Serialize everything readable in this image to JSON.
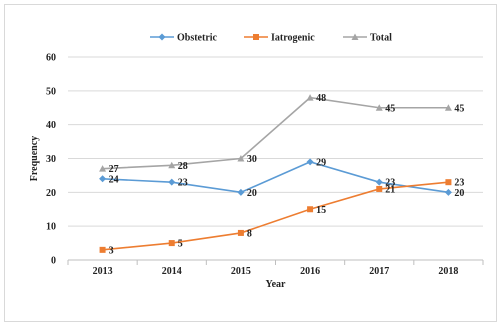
{
  "chart_data": {
    "type": "line",
    "title": "",
    "xlabel": "Year",
    "ylabel": "Frequency",
    "categories": [
      "2013",
      "2014",
      "2015",
      "2016",
      "2017",
      "2018"
    ],
    "ylim": [
      0,
      60
    ],
    "yticks": [
      0,
      10,
      20,
      30,
      40,
      50,
      60
    ],
    "grid": true,
    "legend_position": "top",
    "series": [
      {
        "name": "Obstetric",
        "values": [
          24,
          23,
          20,
          29,
          23,
          20
        ],
        "color": "#5b9bd5",
        "marker": "diamond"
      },
      {
        "name": "Iatrogenic",
        "values": [
          3,
          5,
          8,
          15,
          21,
          23
        ],
        "color": "#ed7d31",
        "marker": "square"
      },
      {
        "name": "Total",
        "values": [
          27,
          28,
          30,
          48,
          45,
          45
        ],
        "color": "#a5a5a5",
        "marker": "triangle"
      }
    ]
  }
}
